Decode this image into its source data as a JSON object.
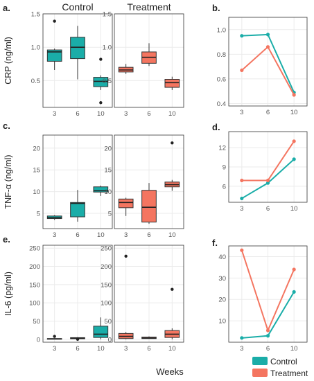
{
  "colors": {
    "control": "#1aada8",
    "treatment": "#f47560",
    "grid": "#ebebeb",
    "panel_border": "#333333",
    "text": "#222222",
    "tick_text": "#555555"
  },
  "figure": {
    "xlabel": "Weeks",
    "legend": [
      "Control",
      "Treatment"
    ],
    "legend_placement": "bottom-right"
  },
  "chart_data": [
    {
      "id": "a-control",
      "type": "box",
      "panel_label": "a.",
      "title": "Control",
      "ylabel": "CRP (ng/ml)",
      "categories": [
        "3",
        "6",
        "10"
      ],
      "ylim": [
        0.1,
        1.5
      ],
      "yticks": [
        0.5,
        1.0,
        1.5
      ],
      "ytick_labels": [
        "0.5",
        "1.0",
        "1.5"
      ],
      "grid": true,
      "series": [
        {
          "name": "Control",
          "color_key": "control",
          "boxes": [
            {
              "whisker_low": 0.66,
              "q1": 0.79,
              "median": 0.93,
              "q3": 0.96,
              "whisker_high": 0.98,
              "outliers": [
                1.39
              ]
            },
            {
              "whisker_low": 0.52,
              "q1": 0.83,
              "median": 1.0,
              "q3": 1.15,
              "whisker_high": 1.32,
              "outliers": []
            },
            {
              "whisker_low": 0.36,
              "q1": 0.41,
              "median": 0.49,
              "q3": 0.55,
              "whisker_high": 0.58,
              "outliers": [
                0.82,
                0.17
              ]
            }
          ]
        }
      ]
    },
    {
      "id": "a-treatment",
      "type": "box",
      "panel_label": "",
      "title": "Treatment",
      "ylabel": "",
      "categories": [
        "3",
        "6",
        "10"
      ],
      "ylim": [
        0.1,
        1.5
      ],
      "yticks": [
        0.5,
        1.0,
        1.5
      ],
      "ytick_labels": [
        "0.5",
        "1.0",
        "1.5"
      ],
      "grid": true,
      "series": [
        {
          "name": "Treatment",
          "color_key": "treatment",
          "boxes": [
            {
              "whisker_low": 0.6,
              "q1": 0.63,
              "median": 0.66,
              "q3": 0.7,
              "whisker_high": 0.75,
              "outliers": []
            },
            {
              "whisker_low": 0.72,
              "q1": 0.76,
              "median": 0.85,
              "q3": 0.93,
              "whisker_high": 1.06,
              "outliers": []
            },
            {
              "whisker_low": 0.36,
              "q1": 0.4,
              "median": 0.47,
              "q3": 0.52,
              "whisker_high": 0.56,
              "outliers": []
            }
          ]
        }
      ]
    },
    {
      "id": "b",
      "type": "line",
      "panel_label": "b.",
      "title": "",
      "ylabel": "",
      "categories": [
        "3",
        "6",
        "10"
      ],
      "ylim": [
        0.38,
        1.1
      ],
      "yticks": [
        0.4,
        0.6,
        0.8,
        1.0
      ],
      "ytick_labels": [
        "0.4",
        "0.6",
        "0.8",
        "1.0"
      ],
      "grid": true,
      "series": [
        {
          "name": "Control",
          "color_key": "control",
          "values": [
            0.95,
            0.96,
            0.49
          ]
        },
        {
          "name": "Treatment",
          "color_key": "treatment",
          "values": [
            0.67,
            0.86,
            0.47
          ]
        }
      ]
    },
    {
      "id": "c-control",
      "type": "box",
      "panel_label": "c.",
      "title": "",
      "ylabel": "TNF-α (ng/ml)",
      "categories": [
        "3",
        "6",
        "10"
      ],
      "ylim": [
        1.5,
        23
      ],
      "yticks": [
        5,
        10,
        15,
        20
      ],
      "ytick_labels": [
        "5",
        "10",
        "15",
        "20"
      ],
      "grid": true,
      "series": [
        {
          "name": "Control",
          "color_key": "control",
          "boxes": [
            {
              "whisker_low": 3.5,
              "q1": 3.8,
              "median": 4.0,
              "q3": 4.4,
              "whisker_high": 4.6,
              "outliers": []
            },
            {
              "whisker_low": 3.1,
              "q1": 4.2,
              "median": 7.3,
              "q3": 7.5,
              "whisker_high": 10.4,
              "outliers": []
            },
            {
              "whisker_low": 9.0,
              "q1": 9.9,
              "median": 10.2,
              "q3": 11.1,
              "whisker_high": 11.4,
              "outliers": []
            }
          ]
        }
      ]
    },
    {
      "id": "c-treatment",
      "type": "box",
      "panel_label": "",
      "title": "",
      "ylabel": "",
      "categories": [
        "3",
        "6",
        "10"
      ],
      "ylim": [
        1.5,
        23
      ],
      "yticks": [
        5,
        10,
        15,
        20
      ],
      "ytick_labels": [
        "5",
        "10",
        "15",
        "20"
      ],
      "grid": true,
      "series": [
        {
          "name": "Treatment",
          "color_key": "treatment",
          "boxes": [
            {
              "whisker_low": 4.4,
              "q1": 6.3,
              "median": 7.5,
              "q3": 8.3,
              "whisker_high": 8.6,
              "outliers": []
            },
            {
              "whisker_low": 2.6,
              "q1": 3.0,
              "median": 6.4,
              "q3": 10.3,
              "whisker_high": 12.0,
              "outliers": []
            },
            {
              "whisker_low": 10.2,
              "q1": 11.1,
              "median": 11.6,
              "q3": 12.2,
              "whisker_high": 12.7,
              "outliers": [
                21.2
              ]
            }
          ]
        }
      ]
    },
    {
      "id": "d",
      "type": "line",
      "panel_label": "d.",
      "title": "",
      "ylabel": "",
      "categories": [
        "3",
        "6",
        "10"
      ],
      "ylim": [
        3.5,
        14.5
      ],
      "yticks": [
        6,
        9,
        12
      ],
      "ytick_labels": [
        "6",
        "9",
        "12"
      ],
      "grid": true,
      "series": [
        {
          "name": "Control",
          "color_key": "control",
          "values": [
            4.1,
            6.5,
            10.2
          ]
        },
        {
          "name": "Treatment",
          "color_key": "treatment",
          "values": [
            6.9,
            6.9,
            13.0
          ]
        }
      ]
    },
    {
      "id": "e-control",
      "type": "box",
      "panel_label": "e.",
      "title": "",
      "ylabel": "IL-6 (pg/ml)",
      "categories": [
        "3",
        "6",
        "10"
      ],
      "ylim": [
        -8,
        258
      ],
      "yticks": [
        0,
        50,
        100,
        150,
        200,
        250
      ],
      "ytick_labels": [
        "0",
        "50",
        "100",
        "150",
        "200",
        "250"
      ],
      "grid": true,
      "series": [
        {
          "name": "Control",
          "color_key": "control",
          "boxes": [
            {
              "whisker_low": 0,
              "q1": 0.5,
              "median": 1.2,
              "q3": 2,
              "whisker_high": 3,
              "outliers": [
                8
              ]
            },
            {
              "whisker_low": 0,
              "q1": 1.5,
              "median": 3,
              "q3": 4.5,
              "whisker_high": 6,
              "outliers": [
                0
              ]
            },
            {
              "whisker_low": 0,
              "q1": 5,
              "median": 14,
              "q3": 36,
              "whisker_high": 60,
              "outliers": []
            }
          ]
        }
      ]
    },
    {
      "id": "e-treatment",
      "type": "box",
      "panel_label": "",
      "title": "",
      "ylabel": "",
      "categories": [
        "3",
        "6",
        "10"
      ],
      "ylim": [
        -8,
        258
      ],
      "yticks": [
        0,
        50,
        100,
        150,
        200,
        250
      ],
      "ytick_labels": [
        "0",
        "50",
        "100",
        "150",
        "200",
        "250"
      ],
      "grid": true,
      "series": [
        {
          "name": "Treatment",
          "color_key": "treatment",
          "boxes": [
            {
              "whisker_low": 0,
              "q1": 2,
              "median": 8,
              "q3": 16,
              "whisker_high": 20,
              "outliers": [
                228
              ]
            },
            {
              "whisker_low": 1,
              "q1": 2,
              "median": 3.5,
              "q3": 6,
              "whisker_high": 8,
              "outliers": []
            },
            {
              "whisker_low": 0,
              "q1": 5,
              "median": 14,
              "q3": 24,
              "whisker_high": 30,
              "outliers": [
                137
              ]
            }
          ]
        }
      ]
    },
    {
      "id": "f",
      "type": "line",
      "panel_label": "f.",
      "title": "",
      "ylabel": "",
      "categories": [
        "3",
        "6",
        "10"
      ],
      "ylim": [
        0,
        45
      ],
      "yticks": [
        10,
        20,
        30,
        40
      ],
      "ytick_labels": [
        "10",
        "20",
        "30",
        "40"
      ],
      "grid": true,
      "series": [
        {
          "name": "Control",
          "color_key": "control",
          "values": [
            2.0,
            3.0,
            23.5
          ]
        },
        {
          "name": "Treatment",
          "color_key": "treatment",
          "values": [
            43.0,
            5.5,
            34.0
          ]
        }
      ]
    }
  ]
}
